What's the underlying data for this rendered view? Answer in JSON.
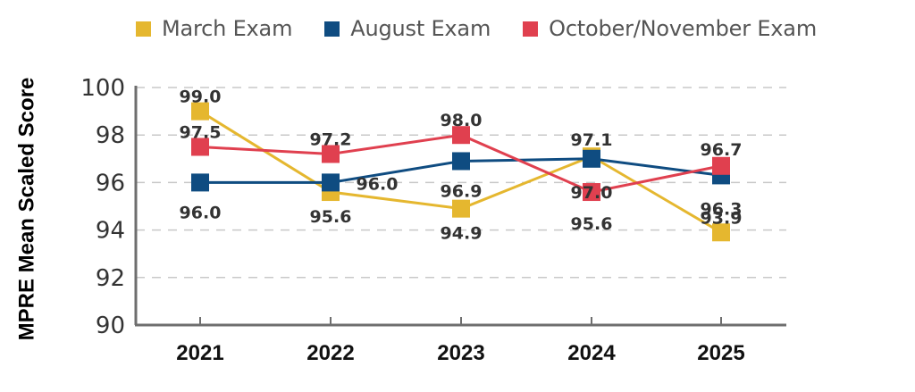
{
  "legend": [
    {
      "label": "March Exam",
      "color": "#E5B72F"
    },
    {
      "label": "August Exam",
      "color": "#0F4C81"
    },
    {
      "label": "October/November Exam",
      "color": "#E0404F"
    }
  ],
  "y_axis_title": "MPRE Mean Scaled Score",
  "chart_data": {
    "type": "line",
    "title": "",
    "xlabel": "",
    "ylabel": "MPRE Mean Scaled Score",
    "categories": [
      "2021",
      "2022",
      "2023",
      "2024",
      "2025"
    ],
    "y_ticks": [
      90,
      92,
      94,
      96,
      98,
      100
    ],
    "ylim": [
      90,
      100
    ],
    "grid": "horizontal dashed",
    "legend_position": "top",
    "series": [
      {
        "name": "March Exam",
        "color": "#E5B72F",
        "values": [
          99.0,
          95.6,
          94.9,
          97.1,
          93.9
        ]
      },
      {
        "name": "August Exam",
        "color": "#0F4C81",
        "values": [
          96.0,
          96.0,
          96.9,
          97.0,
          96.3
        ]
      },
      {
        "name": "October/November Exam",
        "color": "#E0404F",
        "values": [
          97.5,
          97.2,
          98.0,
          95.6,
          96.7
        ]
      }
    ]
  }
}
